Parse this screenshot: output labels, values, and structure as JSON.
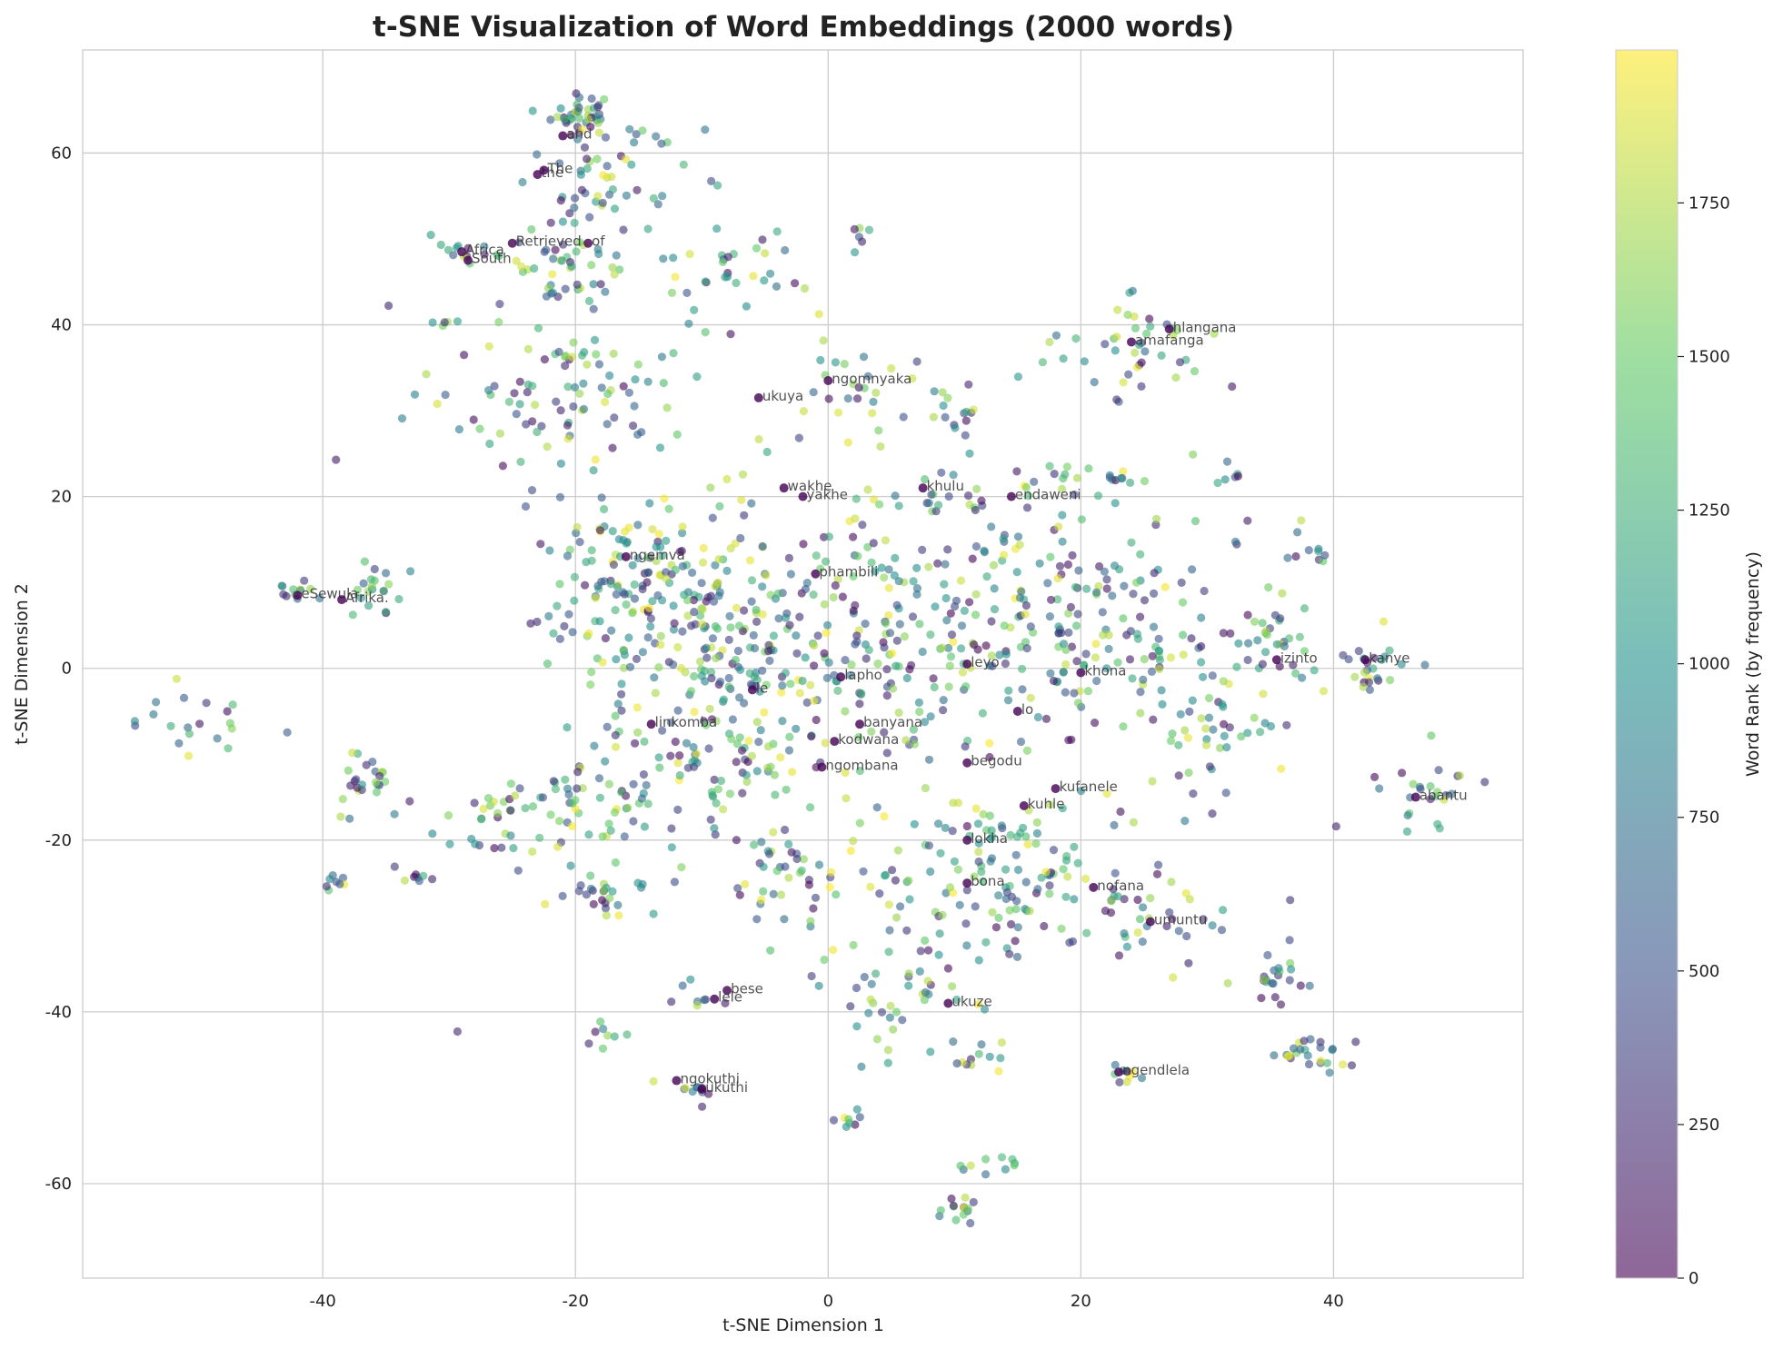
{
  "chart_data": {
    "type": "scatter",
    "title": "t-SNE Visualization of Word Embeddings (2000 words)",
    "xlabel": "t-SNE Dimension 1",
    "ylabel": "t-SNE Dimension 2",
    "xlim": [
      -59,
      55
    ],
    "ylim": [
      -71,
      72
    ],
    "xticks": [
      -40,
      -20,
      0,
      20,
      40
    ],
    "yticks": [
      -60,
      -40,
      -20,
      0,
      20,
      40,
      60
    ],
    "xtick_labels": [
      "-40",
      "-20",
      "0",
      "20",
      "40"
    ],
    "ytick_labels": [
      "-60",
      "-40",
      "-20",
      "0",
      "20",
      "40",
      "60"
    ],
    "grid": true,
    "n_points": 2000,
    "colormap": "viridis",
    "colormap_stops": [
      "#440154",
      "#3b528b",
      "#21918c",
      "#5ec962",
      "#fde725"
    ],
    "point_alpha": 0.6,
    "colorbar": {
      "label": "Word Rank (by frequency)",
      "min": 0,
      "max": 1999,
      "ticks": [
        0,
        250,
        500,
        750,
        1000,
        1250,
        1500,
        1750
      ],
      "tick_labels": [
        "0",
        "250",
        "500",
        "750",
        "1000",
        "1250",
        "1500",
        "1750"
      ]
    },
    "clusters": [
      {
        "x": -19.5,
        "y": 64.5,
        "sd": 1.2,
        "n": 40
      },
      {
        "x": -18,
        "y": 56,
        "sd": 3.5,
        "n": 60
      },
      {
        "x": -21,
        "y": 47,
        "sd": 3,
        "n": 45
      },
      {
        "x": -29,
        "y": 48.5,
        "sd": 0.8,
        "n": 10
      },
      {
        "x": -22,
        "y": 32,
        "sd": 5,
        "n": 100
      },
      {
        "x": -30.5,
        "y": 40,
        "sd": 0.6,
        "n": 5
      },
      {
        "x": -42,
        "y": 8.5,
        "sd": 1,
        "n": 12
      },
      {
        "x": -36,
        "y": 9,
        "sd": 1.8,
        "n": 20
      },
      {
        "x": -51,
        "y": -6.5,
        "sd": 2.5,
        "n": 20
      },
      {
        "x": -37,
        "y": -13,
        "sd": 1.5,
        "n": 25
      },
      {
        "x": -39,
        "y": -25,
        "sd": 0.6,
        "n": 8
      },
      {
        "x": -33,
        "y": -24,
        "sd": 0.7,
        "n": 8
      },
      {
        "x": -26,
        "y": -18,
        "sd": 2.5,
        "n": 30
      },
      {
        "x": -20,
        "y": -15,
        "sd": 2.5,
        "n": 40
      },
      {
        "x": -18,
        "y": -26,
        "sd": 2.5,
        "n": 30
      },
      {
        "x": -18,
        "y": -42.5,
        "sd": 1,
        "n": 8
      },
      {
        "x": -15,
        "y": 10,
        "sd": 5,
        "n": 140
      },
      {
        "x": -8,
        "y": 0,
        "sd": 6,
        "n": 140
      },
      {
        "x": -10,
        "y": -12,
        "sd": 4,
        "n": 70
      },
      {
        "x": -3,
        "y": -25,
        "sd": 3,
        "n": 45
      },
      {
        "x": -10,
        "y": -38,
        "sd": 1.2,
        "n": 8
      },
      {
        "x": -10.5,
        "y": -49,
        "sd": 1,
        "n": 10
      },
      {
        "x": -7,
        "y": 45.5,
        "sd": 3,
        "n": 30
      },
      {
        "x": 3,
        "y": 50.5,
        "sd": 0.7,
        "n": 6
      },
      {
        "x": 1,
        "y": 33,
        "sd": 3,
        "n": 25
      },
      {
        "x": 5,
        "y": 5,
        "sd": 9,
        "n": 260
      },
      {
        "x": 10,
        "y": 30,
        "sd": 2,
        "n": 18
      },
      {
        "x": 8,
        "y": 20.5,
        "sd": 1.5,
        "n": 12
      },
      {
        "x": 16,
        "y": 21.5,
        "sd": 2,
        "n": 14
      },
      {
        "x": 22,
        "y": 5,
        "sd": 7,
        "n": 170
      },
      {
        "x": 14,
        "y": -25,
        "sd": 6,
        "n": 150
      },
      {
        "x": 5,
        "y": -38,
        "sd": 3,
        "n": 40
      },
      {
        "x": 12,
        "y": -45,
        "sd": 1.2,
        "n": 12
      },
      {
        "x": 1.5,
        "y": -52.5,
        "sd": 0.8,
        "n": 8
      },
      {
        "x": 12.5,
        "y": -58,
        "sd": 1.2,
        "n": 10
      },
      {
        "x": 10.5,
        "y": -63,
        "sd": 0.8,
        "n": 14
      },
      {
        "x": 23.5,
        "y": -47.5,
        "sd": 0.7,
        "n": 10
      },
      {
        "x": 27,
        "y": -29,
        "sd": 2.5,
        "n": 25
      },
      {
        "x": 35,
        "y": -36,
        "sd": 1.5,
        "n": 22
      },
      {
        "x": 38,
        "y": -45,
        "sd": 1.5,
        "n": 25
      },
      {
        "x": 31,
        "y": -8,
        "sd": 3,
        "n": 40
      },
      {
        "x": 35,
        "y": 3,
        "sd": 3,
        "n": 30
      },
      {
        "x": 43,
        "y": 0,
        "sd": 2,
        "n": 25
      },
      {
        "x": 47,
        "y": -15,
        "sd": 2,
        "n": 25
      },
      {
        "x": 26,
        "y": 38,
        "sd": 2.5,
        "n": 30
      },
      {
        "x": 22,
        "y": 35,
        "sd": 2,
        "n": 12
      },
      {
        "x": 31.5,
        "y": 22.5,
        "sd": 0.8,
        "n": 6
      },
      {
        "x": 38.5,
        "y": 13.5,
        "sd": 1,
        "n": 8
      },
      {
        "x": 23.5,
        "y": 22.5,
        "sd": 1,
        "n": 8
      },
      {
        "x": -29.5,
        "y": -42.3,
        "sd": 0.1,
        "n": 1
      }
    ],
    "annotations": [
      {
        "text": "and",
        "x": -21,
        "y": 62
      },
      {
        "text": "the",
        "x": -23,
        "y": 57.5
      },
      {
        "text": "The",
        "x": -22.5,
        "y": 58
      },
      {
        "text": "Africa",
        "x": -29,
        "y": 48.5
      },
      {
        "text": "South",
        "x": -28.5,
        "y": 47.5
      },
      {
        "text": "Retrieved",
        "x": -25,
        "y": 49.5
      },
      {
        "text": "of",
        "x": -19,
        "y": 49.5
      },
      {
        "text": "hlangana",
        "x": 27,
        "y": 39.5
      },
      {
        "text": "amafanga",
        "x": 24,
        "y": 38
      },
      {
        "text": "ngomnyaka",
        "x": 0,
        "y": 33.5
      },
      {
        "text": "ukuya",
        "x": -5.5,
        "y": 31.5
      },
      {
        "text": "wakhe",
        "x": -3.5,
        "y": 21
      },
      {
        "text": "yakhe",
        "x": -2,
        "y": 20
      },
      {
        "text": "khulu",
        "x": 7.5,
        "y": 21
      },
      {
        "text": "endaweni",
        "x": 14.5,
        "y": 20
      },
      {
        "text": "ngemva",
        "x": -16,
        "y": 13
      },
      {
        "text": "phambili",
        "x": -1,
        "y": 11
      },
      {
        "text": "eSewula",
        "x": -42,
        "y": 8.5
      },
      {
        "text": "Afrika.",
        "x": -38.5,
        "y": 8
      },
      {
        "text": "izinto",
        "x": 35.5,
        "y": 1
      },
      {
        "text": "kanye",
        "x": 42.5,
        "y": 1
      },
      {
        "text": "leyo",
        "x": 11,
        "y": 0.5
      },
      {
        "text": "khona",
        "x": 20,
        "y": -0.5
      },
      {
        "text": "lapho",
        "x": 1,
        "y": -1
      },
      {
        "text": "le",
        "x": -6,
        "y": -2.5
      },
      {
        "text": "lo",
        "x": 15,
        "y": -5
      },
      {
        "text": "linkomba",
        "x": -14,
        "y": -6.5
      },
      {
        "text": "banyana",
        "x": 2.5,
        "y": -6.5
      },
      {
        "text": "kodwana",
        "x": 0.5,
        "y": -8.5
      },
      {
        "text": "ngombana",
        "x": -0.5,
        "y": -11.5
      },
      {
        "text": "begodu",
        "x": 11,
        "y": -11
      },
      {
        "text": "kufanele",
        "x": 18,
        "y": -14
      },
      {
        "text": "kuhle",
        "x": 15.5,
        "y": -16
      },
      {
        "text": "abantu",
        "x": 46.5,
        "y": -15
      },
      {
        "text": "lokha",
        "x": 11,
        "y": -20
      },
      {
        "text": "bona",
        "x": 11,
        "y": -25
      },
      {
        "text": "nofana",
        "x": 21,
        "y": -25.5
      },
      {
        "text": "umuntu",
        "x": 25.5,
        "y": -29.5
      },
      {
        "text": "bese",
        "x": -8,
        "y": -37.5
      },
      {
        "text": "lele",
        "x": -9,
        "y": -38.5
      },
      {
        "text": "ukuze",
        "x": 9.5,
        "y": -39
      },
      {
        "text": "ngendlela",
        "x": 23,
        "y": -47
      },
      {
        "text": "ngokuthi",
        "x": -12,
        "y": -48
      },
      {
        "text": "ukuthi",
        "x": -10,
        "y": -49
      }
    ]
  }
}
